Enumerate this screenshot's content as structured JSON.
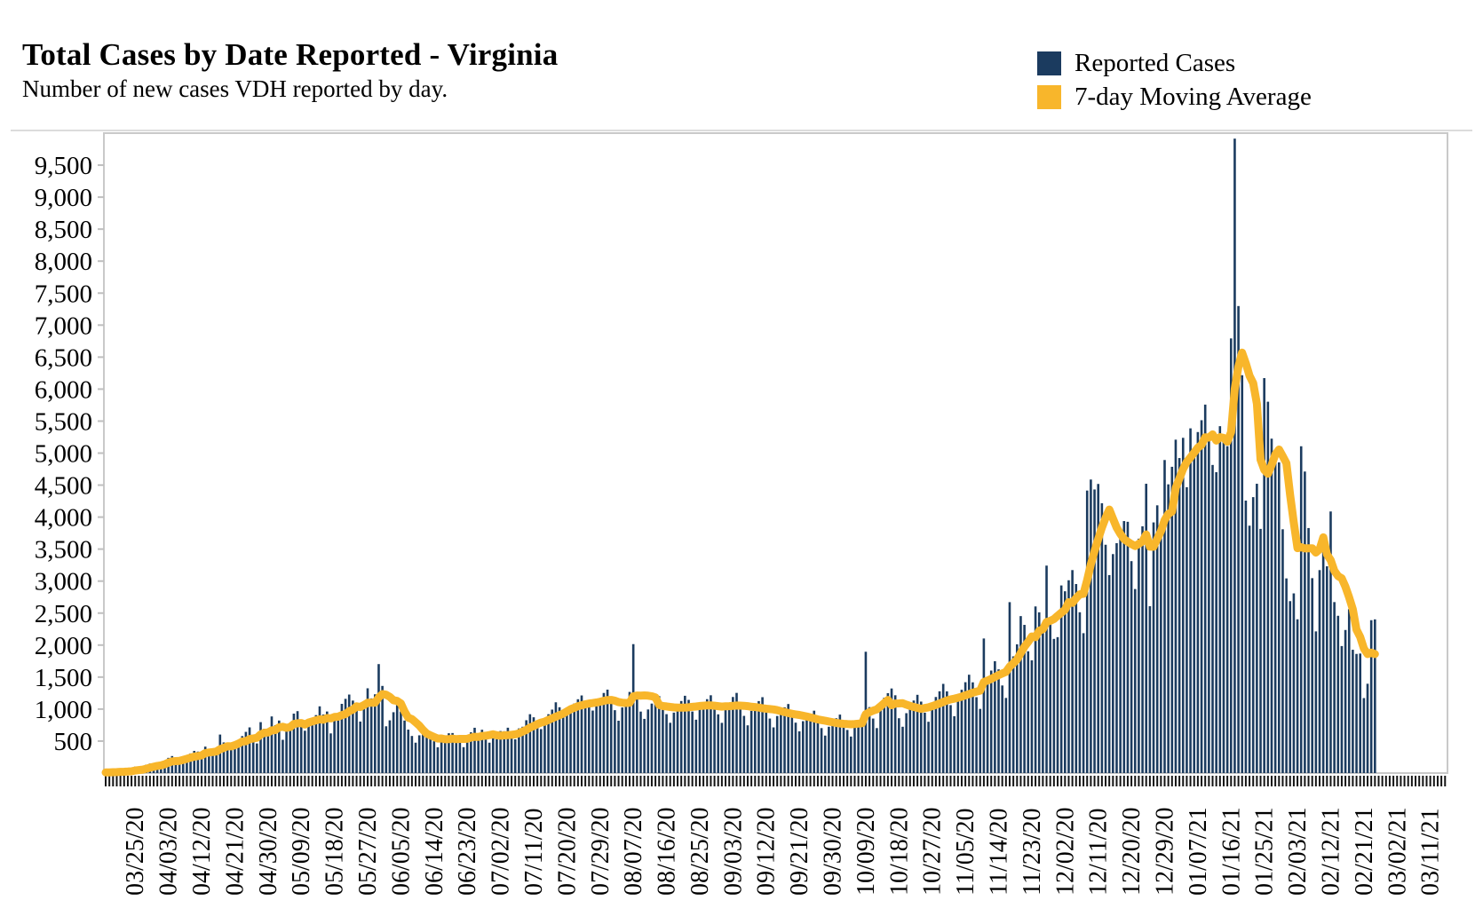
{
  "header": {
    "title": "Total Cases by Date Reported - Virginia",
    "subtitle": "Number of new cases VDH reported by day."
  },
  "legend": [
    {
      "label": "Reported Cases",
      "color": "#1B3B5F",
      "marker": "square"
    },
    {
      "label": "7-day Moving Average",
      "color": "#F8B62B",
      "marker": "square"
    }
  ],
  "chart_data": {
    "type": "bar",
    "title": "Total Cases by Date Reported - Virginia",
    "subtitle": "Number of new cases VDH reported by day.",
    "xlabel": "",
    "ylabel": "",
    "grid": false,
    "legend_position": "top-right",
    "ylim": [
      0,
      10000
    ],
    "y_ticks": [
      500,
      1000,
      1500,
      2000,
      2500,
      3000,
      3500,
      4000,
      4500,
      5000,
      5500,
      6000,
      6500,
      7000,
      7500,
      8000,
      8500,
      9000,
      9500
    ],
    "x_start_date": "03/17/20",
    "x_last_bar_date": "02/24/21",
    "x_axis_total_day_slots": 364,
    "x_tick_every_days": 1,
    "x_label_every_days": 9,
    "x_label_first_day_index": 8,
    "x_tick_labels": [
      "03/25/20",
      "04/03/20",
      "04/12/20",
      "04/21/20",
      "04/30/20",
      "05/09/20",
      "05/18/20",
      "05/27/20",
      "06/05/20",
      "06/14/20",
      "06/23/20",
      "07/02/20",
      "07/11/20",
      "07/20/20",
      "07/29/20",
      "08/07/20",
      "08/16/20",
      "08/25/20",
      "09/03/20",
      "09/12/20",
      "09/21/20",
      "09/30/20",
      "10/09/20",
      "10/18/20",
      "10/27/20",
      "11/05/20",
      "11/14/20",
      "11/23/20",
      "12/02/20",
      "12/11/20",
      "12/20/20",
      "12/29/20",
      "01/07/21",
      "01/16/21",
      "01/25/21",
      "02/03/21",
      "02/12/21",
      "02/21/21",
      "03/02/21",
      "03/11/21"
    ],
    "series": [
      {
        "name": "Reported Cases",
        "type": "bar",
        "color": "#1B3B5F",
        "values": [
          10,
          13,
          18,
          22,
          35,
          29,
          35,
          39,
          101,
          70,
          66,
          132,
          149,
          130,
          134,
          162,
          188,
          238,
          266,
          197,
          152,
          245,
          281,
          307,
          347,
          336,
          260,
          413,
          310,
          329,
          360,
          602,
          479,
          453,
          389,
          437,
          508,
          578,
          644,
          714,
          521,
          463,
          796,
          693,
          602,
          885,
          750,
          821,
          520,
          676,
          786,
          929,
          968,
          772,
          662,
          730,
          803,
          906,
          1043,
          915,
          962,
          620,
          888,
          827,
          1082,
          1160,
          1227,
          1133,
          988,
          805,
          1050,
          1325,
          1167,
          1231,
          1703,
          1362,
          731,
          824,
          951,
          1087,
          962,
          821,
          679,
          580,
          475,
          590,
          609,
          566,
          634,
          497,
          403,
          486,
          502,
          622,
          626,
          576,
          524,
          405,
          492,
          637,
          708,
          616,
          677,
          552,
          475,
          579,
          532,
          657,
          654,
          709,
          576,
          527,
          698,
          724,
          826,
          920,
          872,
          794,
          687,
          801,
          920,
          992,
          1106,
          1029,
          972,
          926,
          1036,
          1087,
          1154,
          1213,
          1133,
          1062,
          977,
          1095,
          1169,
          1252,
          1304,
          1145,
          983,
          818,
          1025,
          1144,
          1268,
          2015,
          1233,
          961,
          847,
          994,
          1086,
          1132,
          1203,
          1107,
          921,
          786,
          945,
          1067,
          1126,
          1208,
          1144,
          962,
          834,
          1003,
          1092,
          1155,
          1216,
          1107,
          918,
          785,
          1041,
          1096,
          1189,
          1253,
          1101,
          894,
          746,
          973,
          1069,
          1125,
          1186,
          1047,
          852,
          714,
          892,
          963,
          1028,
          1079,
          953,
          788,
          652,
          811,
          874,
          926,
          975,
          852,
          703,
          586,
          724,
          793,
          856,
          914,
          812,
          674,
          571,
          748,
          829,
          911,
          1896,
          1031,
          852,
          703,
          1092,
          1178,
          1249,
          1322,
          1216,
          857,
          724,
          936,
          1042,
          1134,
          1223,
          1117,
          943,
          802,
          1056,
          1189,
          1278,
          1394,
          1277,
          1062,
          889,
          1158,
          1302,
          1420,
          1537,
          1418,
          1186,
          1003,
          2103,
          1452,
          1602,
          1748,
          1621,
          1369,
          1174,
          2671,
          1824,
          2012,
          2453,
          2316,
          1903,
          1762,
          2604,
          2512,
          2186,
          3242,
          2438,
          2097,
          2124,
          2932,
          2841,
          3013,
          3172,
          2954,
          2513,
          2186,
          4415,
          4587,
          4432,
          4518,
          4216,
          3568,
          3094,
          3422,
          3593,
          3764,
          3938,
          3927,
          3312,
          2876,
          3663,
          3856,
          4521,
          2608,
          3917,
          4184,
          3706,
          4892,
          4512,
          4786,
          5210,
          4923,
          5239,
          4467,
          5387,
          5034,
          5329,
          5514,
          5758,
          5213,
          4815,
          4702,
          5421,
          5236,
          5108,
          6792,
          9914,
          7298,
          6217,
          4258,
          3866,
          4312,
          4521,
          3816,
          6172,
          5803,
          5226,
          4993,
          4855,
          3810,
          3042,
          2687,
          2808,
          2403,
          5107,
          4712,
          3829,
          3046,
          2214,
          3172,
          3708,
          3231,
          4088,
          2672,
          2458,
          1985,
          2236,
          2561,
          1927,
          1862,
          1868,
          1172,
          1396,
          2389,
          2402
        ]
      },
      {
        "name": "7-day Moving Average",
        "type": "line",
        "color": "#F8B62B",
        "derived_from": "Reported Cases",
        "window": 7
      }
    ]
  }
}
